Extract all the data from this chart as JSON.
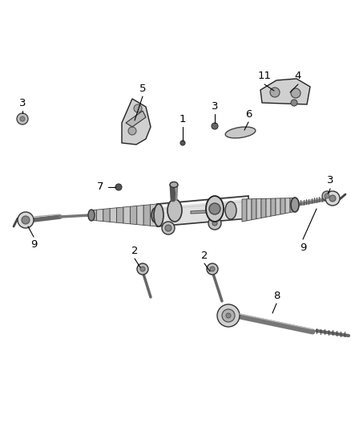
{
  "background_color": "#ffffff",
  "figsize": [
    4.38,
    5.33
  ],
  "dpi": 100,
  "rack_color": "#d0d0d0",
  "rack_edge": "#222222",
  "boot_color": "#909090",
  "boot_edge": "#333333",
  "shaft_color": "#a0a0a0",
  "dark_color": "#404040",
  "line_color": "#000000"
}
